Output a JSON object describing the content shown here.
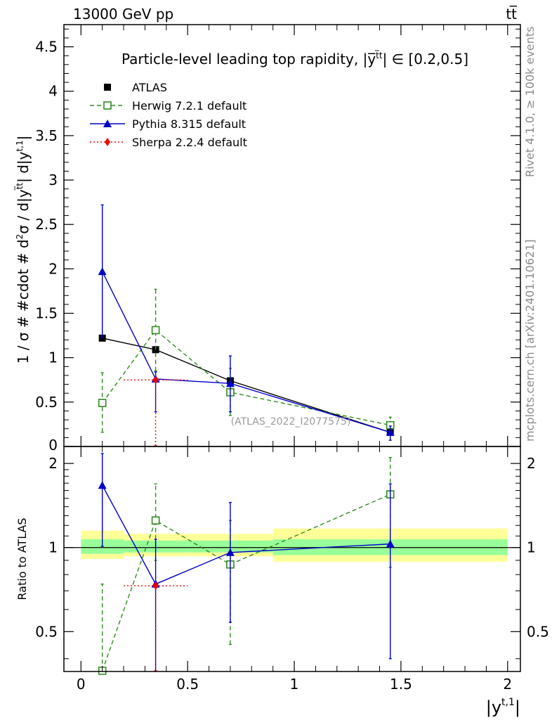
{
  "header": {
    "left_label": "13000 GeV pp",
    "right_label": "tt̅"
  },
  "side_labels": {
    "version": "Rivet 4.1.0, ≥ 100k events",
    "source": "mcplots.cern.ch [arXiv:2401.10621]"
  },
  "chart_data": [
    {
      "panel": "main",
      "type": "scatter",
      "title": "Particle-level leading top rapidity, |y̅^{t̅t}| ∈ [0.2,0.5]",
      "ylabel": "1 / σ # #cdot # d²σ / d|y^{t̅t}| d|y^{t,1}|",
      "xlim": [
        -0.08,
        2.06
      ],
      "ylim": [
        0,
        4.75
      ],
      "yticks": [
        0,
        0.5,
        1,
        1.5,
        2,
        2.5,
        3,
        3.5,
        4,
        4.5
      ],
      "ytick_labels": [
        "0",
        "0.5",
        "1",
        "1.5",
        "2",
        "2.5",
        "3",
        "3.5",
        "4",
        "4.5"
      ],
      "watermark": "(ATLAS_2022_I2077575)",
      "series": [
        {
          "name": "ATLAS",
          "marker": "square",
          "color": "#000000",
          "x": [
            0.1,
            0.35,
            0.7,
            1.45
          ],
          "y": [
            1.22,
            1.09,
            0.74,
            0.16
          ]
        },
        {
          "name": "Herwig 7.2.1 default",
          "marker": "open-square",
          "color": "#2f8c1f",
          "dash": "dashed",
          "x": [
            0.1,
            0.35,
            0.7,
            1.45
          ],
          "y": [
            0.49,
            1.31,
            0.61,
            0.24
          ],
          "yerr_low": [
            0.33,
            0.46,
            0.26,
            0.09
          ],
          "yerr_high": [
            0.34,
            0.46,
            0.27,
            0.09
          ]
        },
        {
          "name": "Pythia 8.315 default",
          "marker": "triangle",
          "color": "#0000cc",
          "dash": "solid",
          "x": [
            0.1,
            0.35,
            0.7,
            1.45
          ],
          "y": [
            1.97,
            0.76,
            0.71,
            0.16
          ],
          "yerr_low": [
            0.74,
            0.37,
            0.32,
            0.09
          ],
          "yerr_high": [
            0.75,
            0.08,
            0.31,
            0.07
          ]
        },
        {
          "name": "Sherpa 2.2.4 default",
          "marker": "diamond",
          "color": "#ee0000",
          "dash": "dotted",
          "x": [
            0.35
          ],
          "y": [
            0.75
          ],
          "xerr": [
            0.15
          ],
          "yerr_low": [
            0.75
          ],
          "yerr_high": [
            0.0
          ]
        }
      ]
    },
    {
      "panel": "ratio",
      "type": "scatter",
      "xlabel": "|y^{t,1}|",
      "ylabel": "Ratio to ATLAS",
      "xlim": [
        -0.08,
        2.06
      ],
      "ylim": [
        0.36,
        2.3
      ],
      "yticks": [
        0.5,
        1,
        2
      ],
      "ytick_labels": [
        "0.5",
        "1",
        "2"
      ],
      "xticks": [
        0,
        0.5,
        1,
        1.5,
        2
      ],
      "xtick_labels": [
        "0",
        "0.5",
        "1",
        "1.5",
        "2"
      ],
      "bands": [
        {
          "x0": 0.0,
          "x1": 0.2,
          "yellow": [
            0.91,
            1.15
          ],
          "green": [
            0.95,
            1.07
          ]
        },
        {
          "x0": 0.2,
          "x1": 0.5,
          "yellow": [
            0.93,
            1.12
          ],
          "green": [
            0.96,
            1.06
          ]
        },
        {
          "x0": 0.5,
          "x1": 0.9,
          "yellow": [
            0.93,
            1.12
          ],
          "green": [
            0.96,
            1.06
          ]
        },
        {
          "x0": 0.9,
          "x1": 2.0,
          "yellow": [
            0.89,
            1.17
          ],
          "green": [
            0.94,
            1.07
          ]
        }
      ],
      "series": [
        {
          "name": "Herwig 7.2.1 default",
          "marker": "open-square",
          "color": "#2f8c1f",
          "dash": "dashed",
          "x": [
            0.1,
            0.35,
            0.7,
            1.45
          ],
          "y": [
            0.35,
            1.25,
            0.87,
            1.55
          ],
          "yerr_low": [
            0.0,
            0.35,
            0.42,
            0.7
          ],
          "yerr_high": [
            0.39,
            0.44,
            0.38,
            0.55
          ]
        },
        {
          "name": "Pythia 8.315 default",
          "marker": "triangle",
          "color": "#0000cc",
          "dash": "solid",
          "x": [
            0.1,
            0.35,
            0.7,
            1.45
          ],
          "y": [
            1.67,
            0.74,
            0.96,
            1.03
          ],
          "yerr_low": [
            0.66,
            0.38,
            0.42,
            0.63
          ],
          "yerr_high": [
            0.5,
            0.33,
            0.49,
            0.66
          ]
        },
        {
          "name": "Sherpa 2.2.4 default",
          "marker": "diamond",
          "color": "#ee0000",
          "dash": "dotted",
          "x": [
            0.35
          ],
          "y": [
            0.73
          ],
          "xerr": [
            0.15
          ],
          "yerr_low": [
            0.37
          ],
          "yerr_high": [
            0.0
          ]
        }
      ]
    }
  ]
}
